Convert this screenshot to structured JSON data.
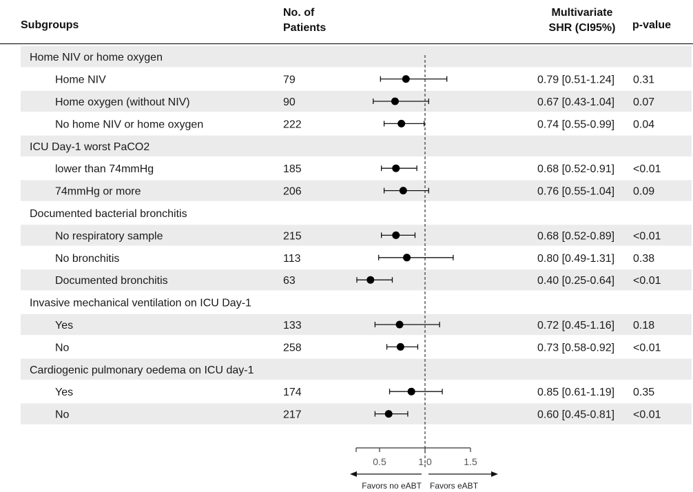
{
  "header": {
    "subgroups": "Subgroups",
    "n_line1": "No. of",
    "n_line2": "Patients",
    "ci_line1": "Multivariate",
    "ci_line2": "SHR (CI95%)",
    "pvalue": "p-value"
  },
  "chart_data": {
    "type": "forest",
    "xlim": [
      0.0,
      1.5
    ],
    "reference_line": 1.0,
    "ticks": [
      0.5,
      1.0,
      1.5
    ],
    "tick_labels": [
      "0.5",
      "1.0",
      "1.5"
    ],
    "favors_left": "Favors no eABT",
    "favors_right": "Favors eABT",
    "rows": [
      {
        "kind": "group",
        "label": "Home NIV or home oxygen"
      },
      {
        "kind": "item",
        "label": "Home NIV",
        "n": "79",
        "est": 0.79,
        "lo": 0.51,
        "hi": 1.24,
        "ci_text": "0.79 [0.51-1.24]",
        "p": "0.31"
      },
      {
        "kind": "item",
        "label": "Home oxygen (without NIV)",
        "n": "90",
        "est": 0.67,
        "lo": 0.43,
        "hi": 1.04,
        "ci_text": "0.67 [0.43-1.04]",
        "p": "0.07"
      },
      {
        "kind": "item",
        "label": "No home NIV or home oxygen",
        "n": "222",
        "est": 0.74,
        "lo": 0.55,
        "hi": 0.99,
        "ci_text": "0.74 [0.55-0.99]",
        "p": "0.04"
      },
      {
        "kind": "group",
        "label": "ICU Day-1 worst PaCO2"
      },
      {
        "kind": "item",
        "label": "lower than 74mmHg",
        "n": "185",
        "est": 0.68,
        "lo": 0.52,
        "hi": 0.91,
        "ci_text": "0.68 [0.52-0.91]",
        "p": "<0.01"
      },
      {
        "kind": "item",
        "label": "74mmHg or more",
        "n": "206",
        "est": 0.76,
        "lo": 0.55,
        "hi": 1.04,
        "ci_text": "0.76 [0.55-1.04]",
        "p": "0.09"
      },
      {
        "kind": "group",
        "label": "Documented bacterial bronchitis"
      },
      {
        "kind": "item",
        "label": "No respiratory sample",
        "n": "215",
        "est": 0.68,
        "lo": 0.52,
        "hi": 0.89,
        "ci_text": "0.68 [0.52-0.89]",
        "p": "<0.01"
      },
      {
        "kind": "item",
        "label": "No bronchitis",
        "n": "113",
        "est": 0.8,
        "lo": 0.49,
        "hi": 1.31,
        "ci_text": "0.80 [0.49-1.31]",
        "p": "0.38"
      },
      {
        "kind": "item",
        "label": "Documented bronchitis",
        "n": "63",
        "est": 0.4,
        "lo": 0.25,
        "hi": 0.64,
        "ci_text": "0.40 [0.25-0.64]",
        "p": "<0.01"
      },
      {
        "kind": "group",
        "label": "Invasive mechanical ventilation on ICU Day-1"
      },
      {
        "kind": "item",
        "label": "Yes",
        "n": "133",
        "est": 0.72,
        "lo": 0.45,
        "hi": 1.16,
        "ci_text": "0.72 [0.45-1.16]",
        "p": "0.18"
      },
      {
        "kind": "item",
        "label": "No",
        "n": "258",
        "est": 0.73,
        "lo": 0.58,
        "hi": 0.92,
        "ci_text": "0.73 [0.58-0.92]",
        "p": "<0.01"
      },
      {
        "kind": "group",
        "label": "Cardiogenic pulmonary oedema on ICU day-1"
      },
      {
        "kind": "item",
        "label": "Yes",
        "n": "174",
        "est": 0.85,
        "lo": 0.61,
        "hi": 1.19,
        "ci_text": "0.85 [0.61-1.19]",
        "p": "0.35"
      },
      {
        "kind": "item",
        "label": "No",
        "n": "217",
        "est": 0.6,
        "lo": 0.45,
        "hi": 0.81,
        "ci_text": "0.60 [0.45-0.81]",
        "p": "<0.01"
      }
    ]
  }
}
